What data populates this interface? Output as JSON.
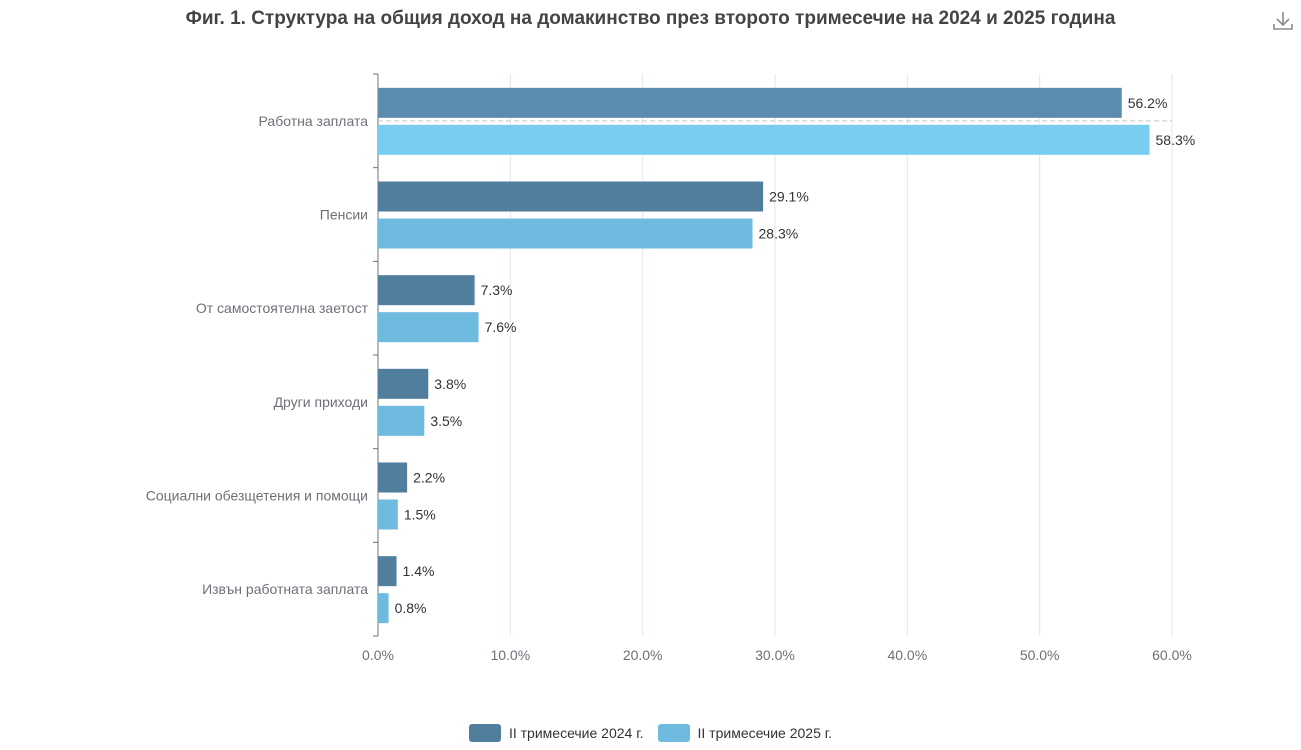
{
  "header": {
    "title": "Фиг. 1. Структура на общия доход на домакинство през второто тримесечие на 2024 и 2025 година",
    "download_icon": "download-icon"
  },
  "colors": {
    "series_2024": "#5b8bad",
    "series_2025": "#78cdf0",
    "series_2024_other": "#527e9e",
    "series_2025_other": "#6fbadf",
    "grid": "#e0e6f1",
    "axis": "#6e7079"
  },
  "chart_data": {
    "type": "bar",
    "orientation": "horizontal",
    "title": "Фиг. 1. Структура на общия доход на домакинство през второто тримесечие на 2024 и 2025 година",
    "categories": [
      "Работна заплата",
      "Пенсии",
      "От самостоятелна заетост",
      "Други приходи",
      "Социални обезщетения и помощи",
      "Извън работната заплата"
    ],
    "series": [
      {
        "name": "II тримесечие 2024 г.",
        "values": [
          56.2,
          29.1,
          7.3,
          3.8,
          2.2,
          1.4
        ]
      },
      {
        "name": "II тримесечие 2025 г.",
        "values": [
          58.3,
          28.3,
          7.6,
          3.5,
          1.5,
          0.8
        ]
      }
    ],
    "data_labels": [
      [
        "56.2%",
        "29.1%",
        "7.3%",
        "3.8%",
        "2.2%",
        "1.4%"
      ],
      [
        "58.3%",
        "28.3%",
        "7.6%",
        "3.5%",
        "1.5%",
        "0.8%"
      ]
    ],
    "xlim": [
      0,
      60
    ],
    "x_ticks": [
      "0.0%",
      "10.0%",
      "20.0%",
      "30.0%",
      "40.0%",
      "50.0%",
      "60.0%"
    ],
    "grid": true,
    "legend_position": "bottom-center"
  }
}
